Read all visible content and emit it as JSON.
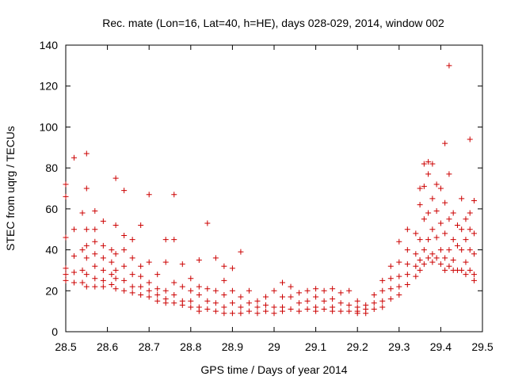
{
  "chart_data": {
    "type": "scatter",
    "title": "Rec. mate (Lon=16, Lat=40, h=HE), days 028-029, 2014, window 002",
    "xlabel": "GPS time / Days of year 2014",
    "ylabel": "STEC from uqrg / TECUs",
    "xlim": [
      28.5,
      29.5
    ],
    "ylim": [
      0,
      140
    ],
    "xticks": [
      "28.5",
      "28.6",
      "28.7",
      "28.8",
      "28.9",
      "29",
      "29.1",
      "29.2",
      "29.3",
      "29.4",
      "29.5"
    ],
    "yticks": [
      "0",
      "20",
      "40",
      "60",
      "80",
      "100",
      "120",
      "140"
    ],
    "grid": false,
    "legend": "none",
    "marker": "plus",
    "color": "#cc0000",
    "points": [
      [
        28.5,
        72
      ],
      [
        28.5,
        66
      ],
      [
        28.5,
        46
      ],
      [
        28.5,
        31
      ],
      [
        28.5,
        28
      ],
      [
        28.5,
        25
      ],
      [
        28.52,
        85
      ],
      [
        28.52,
        50
      ],
      [
        28.52,
        37
      ],
      [
        28.52,
        29
      ],
      [
        28.52,
        24
      ],
      [
        28.54,
        58
      ],
      [
        28.54,
        40
      ],
      [
        28.54,
        30
      ],
      [
        28.54,
        24
      ],
      [
        28.55,
        87
      ],
      [
        28.55,
        70
      ],
      [
        28.55,
        50
      ],
      [
        28.55,
        42
      ],
      [
        28.55,
        36
      ],
      [
        28.55,
        28
      ],
      [
        28.55,
        22
      ],
      [
        28.57,
        59
      ],
      [
        28.57,
        50
      ],
      [
        28.57,
        44
      ],
      [
        28.57,
        38
      ],
      [
        28.57,
        32
      ],
      [
        28.57,
        26
      ],
      [
        28.57,
        22
      ],
      [
        28.59,
        54
      ],
      [
        28.59,
        42
      ],
      [
        28.59,
        36
      ],
      [
        28.59,
        30
      ],
      [
        28.59,
        25
      ],
      [
        28.59,
        22
      ],
      [
        28.61,
        40
      ],
      [
        28.61,
        34
      ],
      [
        28.61,
        28
      ],
      [
        28.61,
        23
      ],
      [
        28.62,
        75
      ],
      [
        28.62,
        52
      ],
      [
        28.62,
        38
      ],
      [
        28.62,
        30
      ],
      [
        28.62,
        26
      ],
      [
        28.62,
        21
      ],
      [
        28.64,
        69
      ],
      [
        28.64,
        47
      ],
      [
        28.64,
        40
      ],
      [
        28.64,
        32
      ],
      [
        28.64,
        25
      ],
      [
        28.64,
        20
      ],
      [
        28.66,
        45
      ],
      [
        28.66,
        36
      ],
      [
        28.66,
        28
      ],
      [
        28.66,
        22
      ],
      [
        28.66,
        19
      ],
      [
        28.68,
        52
      ],
      [
        28.68,
        32
      ],
      [
        28.68,
        27
      ],
      [
        28.68,
        22
      ],
      [
        28.68,
        18
      ],
      [
        28.7,
        67
      ],
      [
        28.7,
        34
      ],
      [
        28.7,
        24
      ],
      [
        28.7,
        20
      ],
      [
        28.7,
        17
      ],
      [
        28.72,
        28
      ],
      [
        28.72,
        21
      ],
      [
        28.72,
        18
      ],
      [
        28.72,
        15
      ],
      [
        28.74,
        45
      ],
      [
        28.74,
        34
      ],
      [
        28.74,
        20
      ],
      [
        28.74,
        16
      ],
      [
        28.74,
        14
      ],
      [
        28.76,
        67
      ],
      [
        28.76,
        45
      ],
      [
        28.76,
        24
      ],
      [
        28.76,
        18
      ],
      [
        28.76,
        14
      ],
      [
        28.78,
        33
      ],
      [
        28.78,
        22
      ],
      [
        28.78,
        15
      ],
      [
        28.78,
        13
      ],
      [
        28.8,
        26
      ],
      [
        28.8,
        20
      ],
      [
        28.8,
        15
      ],
      [
        28.8,
        12
      ],
      [
        28.82,
        35
      ],
      [
        28.82,
        22
      ],
      [
        28.82,
        18
      ],
      [
        28.82,
        12
      ],
      [
        28.82,
        10
      ],
      [
        28.84,
        53
      ],
      [
        28.84,
        21
      ],
      [
        28.84,
        15
      ],
      [
        28.84,
        11
      ],
      [
        28.86,
        36
      ],
      [
        28.86,
        20
      ],
      [
        28.86,
        14
      ],
      [
        28.86,
        10
      ],
      [
        28.88,
        32
      ],
      [
        28.88,
        25
      ],
      [
        28.88,
        18
      ],
      [
        28.88,
        12
      ],
      [
        28.88,
        9
      ],
      [
        28.9,
        31
      ],
      [
        28.9,
        20
      ],
      [
        28.9,
        14
      ],
      [
        28.9,
        9
      ],
      [
        28.92,
        39
      ],
      [
        28.92,
        17
      ],
      [
        28.92,
        12
      ],
      [
        28.92,
        9
      ],
      [
        28.94,
        20
      ],
      [
        28.94,
        14
      ],
      [
        28.94,
        10
      ],
      [
        28.96,
        15
      ],
      [
        28.96,
        12
      ],
      [
        28.96,
        9
      ],
      [
        28.98,
        17
      ],
      [
        28.98,
        13
      ],
      [
        28.98,
        10
      ],
      [
        29.0,
        20
      ],
      [
        29.0,
        12
      ],
      [
        29.0,
        9
      ],
      [
        29.02,
        24
      ],
      [
        29.02,
        17
      ],
      [
        29.02,
        12
      ],
      [
        29.02,
        10
      ],
      [
        29.04,
        22
      ],
      [
        29.04,
        17
      ],
      [
        29.04,
        11
      ],
      [
        29.06,
        19
      ],
      [
        29.06,
        14
      ],
      [
        29.06,
        10
      ],
      [
        29.08,
        20
      ],
      [
        29.08,
        15
      ],
      [
        29.08,
        11
      ],
      [
        29.1,
        21
      ],
      [
        29.1,
        17
      ],
      [
        29.1,
        12
      ],
      [
        29.1,
        10
      ],
      [
        29.12,
        20
      ],
      [
        29.12,
        15
      ],
      [
        29.12,
        11
      ],
      [
        29.14,
        21
      ],
      [
        29.14,
        16
      ],
      [
        29.14,
        12
      ],
      [
        29.14,
        10
      ],
      [
        29.16,
        19
      ],
      [
        29.16,
        14
      ],
      [
        29.16,
        10
      ],
      [
        29.18,
        20
      ],
      [
        29.18,
        13
      ],
      [
        29.18,
        10
      ],
      [
        29.2,
        15
      ],
      [
        29.2,
        12
      ],
      [
        29.2,
        10
      ],
      [
        29.2,
        9
      ],
      [
        29.22,
        13
      ],
      [
        29.22,
        11
      ],
      [
        29.22,
        9
      ],
      [
        29.24,
        18
      ],
      [
        29.24,
        14
      ],
      [
        29.24,
        11
      ],
      [
        29.26,
        25
      ],
      [
        29.26,
        20
      ],
      [
        29.26,
        15
      ],
      [
        29.26,
        12
      ],
      [
        29.28,
        32
      ],
      [
        29.28,
        26
      ],
      [
        29.28,
        21
      ],
      [
        29.28,
        16
      ],
      [
        29.3,
        44
      ],
      [
        29.3,
        34
      ],
      [
        29.3,
        27
      ],
      [
        29.3,
        22
      ],
      [
        29.3,
        18
      ],
      [
        29.32,
        50
      ],
      [
        29.32,
        40
      ],
      [
        29.32,
        33
      ],
      [
        29.32,
        28
      ],
      [
        29.32,
        23
      ],
      [
        29.34,
        48
      ],
      [
        29.34,
        38
      ],
      [
        29.34,
        32
      ],
      [
        29.34,
        27
      ],
      [
        29.35,
        70
      ],
      [
        29.35,
        62
      ],
      [
        29.35,
        45
      ],
      [
        29.35,
        35
      ],
      [
        29.35,
        30
      ],
      [
        29.36,
        82
      ],
      [
        29.36,
        71
      ],
      [
        29.36,
        55
      ],
      [
        29.36,
        40
      ],
      [
        29.36,
        33
      ],
      [
        29.37,
        83
      ],
      [
        29.37,
        77
      ],
      [
        29.37,
        58
      ],
      [
        29.37,
        45
      ],
      [
        29.37,
        36
      ],
      [
        29.38,
        82
      ],
      [
        29.38,
        65
      ],
      [
        29.38,
        50
      ],
      [
        29.38,
        38
      ],
      [
        29.38,
        34
      ],
      [
        29.39,
        72
      ],
      [
        29.39,
        59
      ],
      [
        29.39,
        46
      ],
      [
        29.39,
        36
      ],
      [
        29.4,
        70
      ],
      [
        29.4,
        53
      ],
      [
        29.4,
        40
      ],
      [
        29.4,
        33
      ],
      [
        29.41,
        92
      ],
      [
        29.41,
        63
      ],
      [
        29.41,
        48
      ],
      [
        29.41,
        36
      ],
      [
        29.41,
        30
      ],
      [
        29.42,
        130
      ],
      [
        29.42,
        77
      ],
      [
        29.42,
        55
      ],
      [
        29.42,
        40
      ],
      [
        29.42,
        32
      ],
      [
        29.43,
        58
      ],
      [
        29.43,
        45
      ],
      [
        29.43,
        35
      ],
      [
        29.43,
        30
      ],
      [
        29.44,
        52
      ],
      [
        29.44,
        42
      ],
      [
        29.44,
        30
      ],
      [
        29.45,
        65
      ],
      [
        29.45,
        50
      ],
      [
        29.45,
        40
      ],
      [
        29.45,
        30
      ],
      [
        29.46,
        55
      ],
      [
        29.46,
        45
      ],
      [
        29.46,
        34
      ],
      [
        29.46,
        28
      ],
      [
        29.47,
        94
      ],
      [
        29.47,
        58
      ],
      [
        29.47,
        50
      ],
      [
        29.47,
        40
      ],
      [
        29.47,
        30
      ],
      [
        29.48,
        64
      ],
      [
        29.48,
        48
      ],
      [
        29.48,
        38
      ],
      [
        29.48,
        28
      ],
      [
        29.48,
        25
      ]
    ]
  }
}
